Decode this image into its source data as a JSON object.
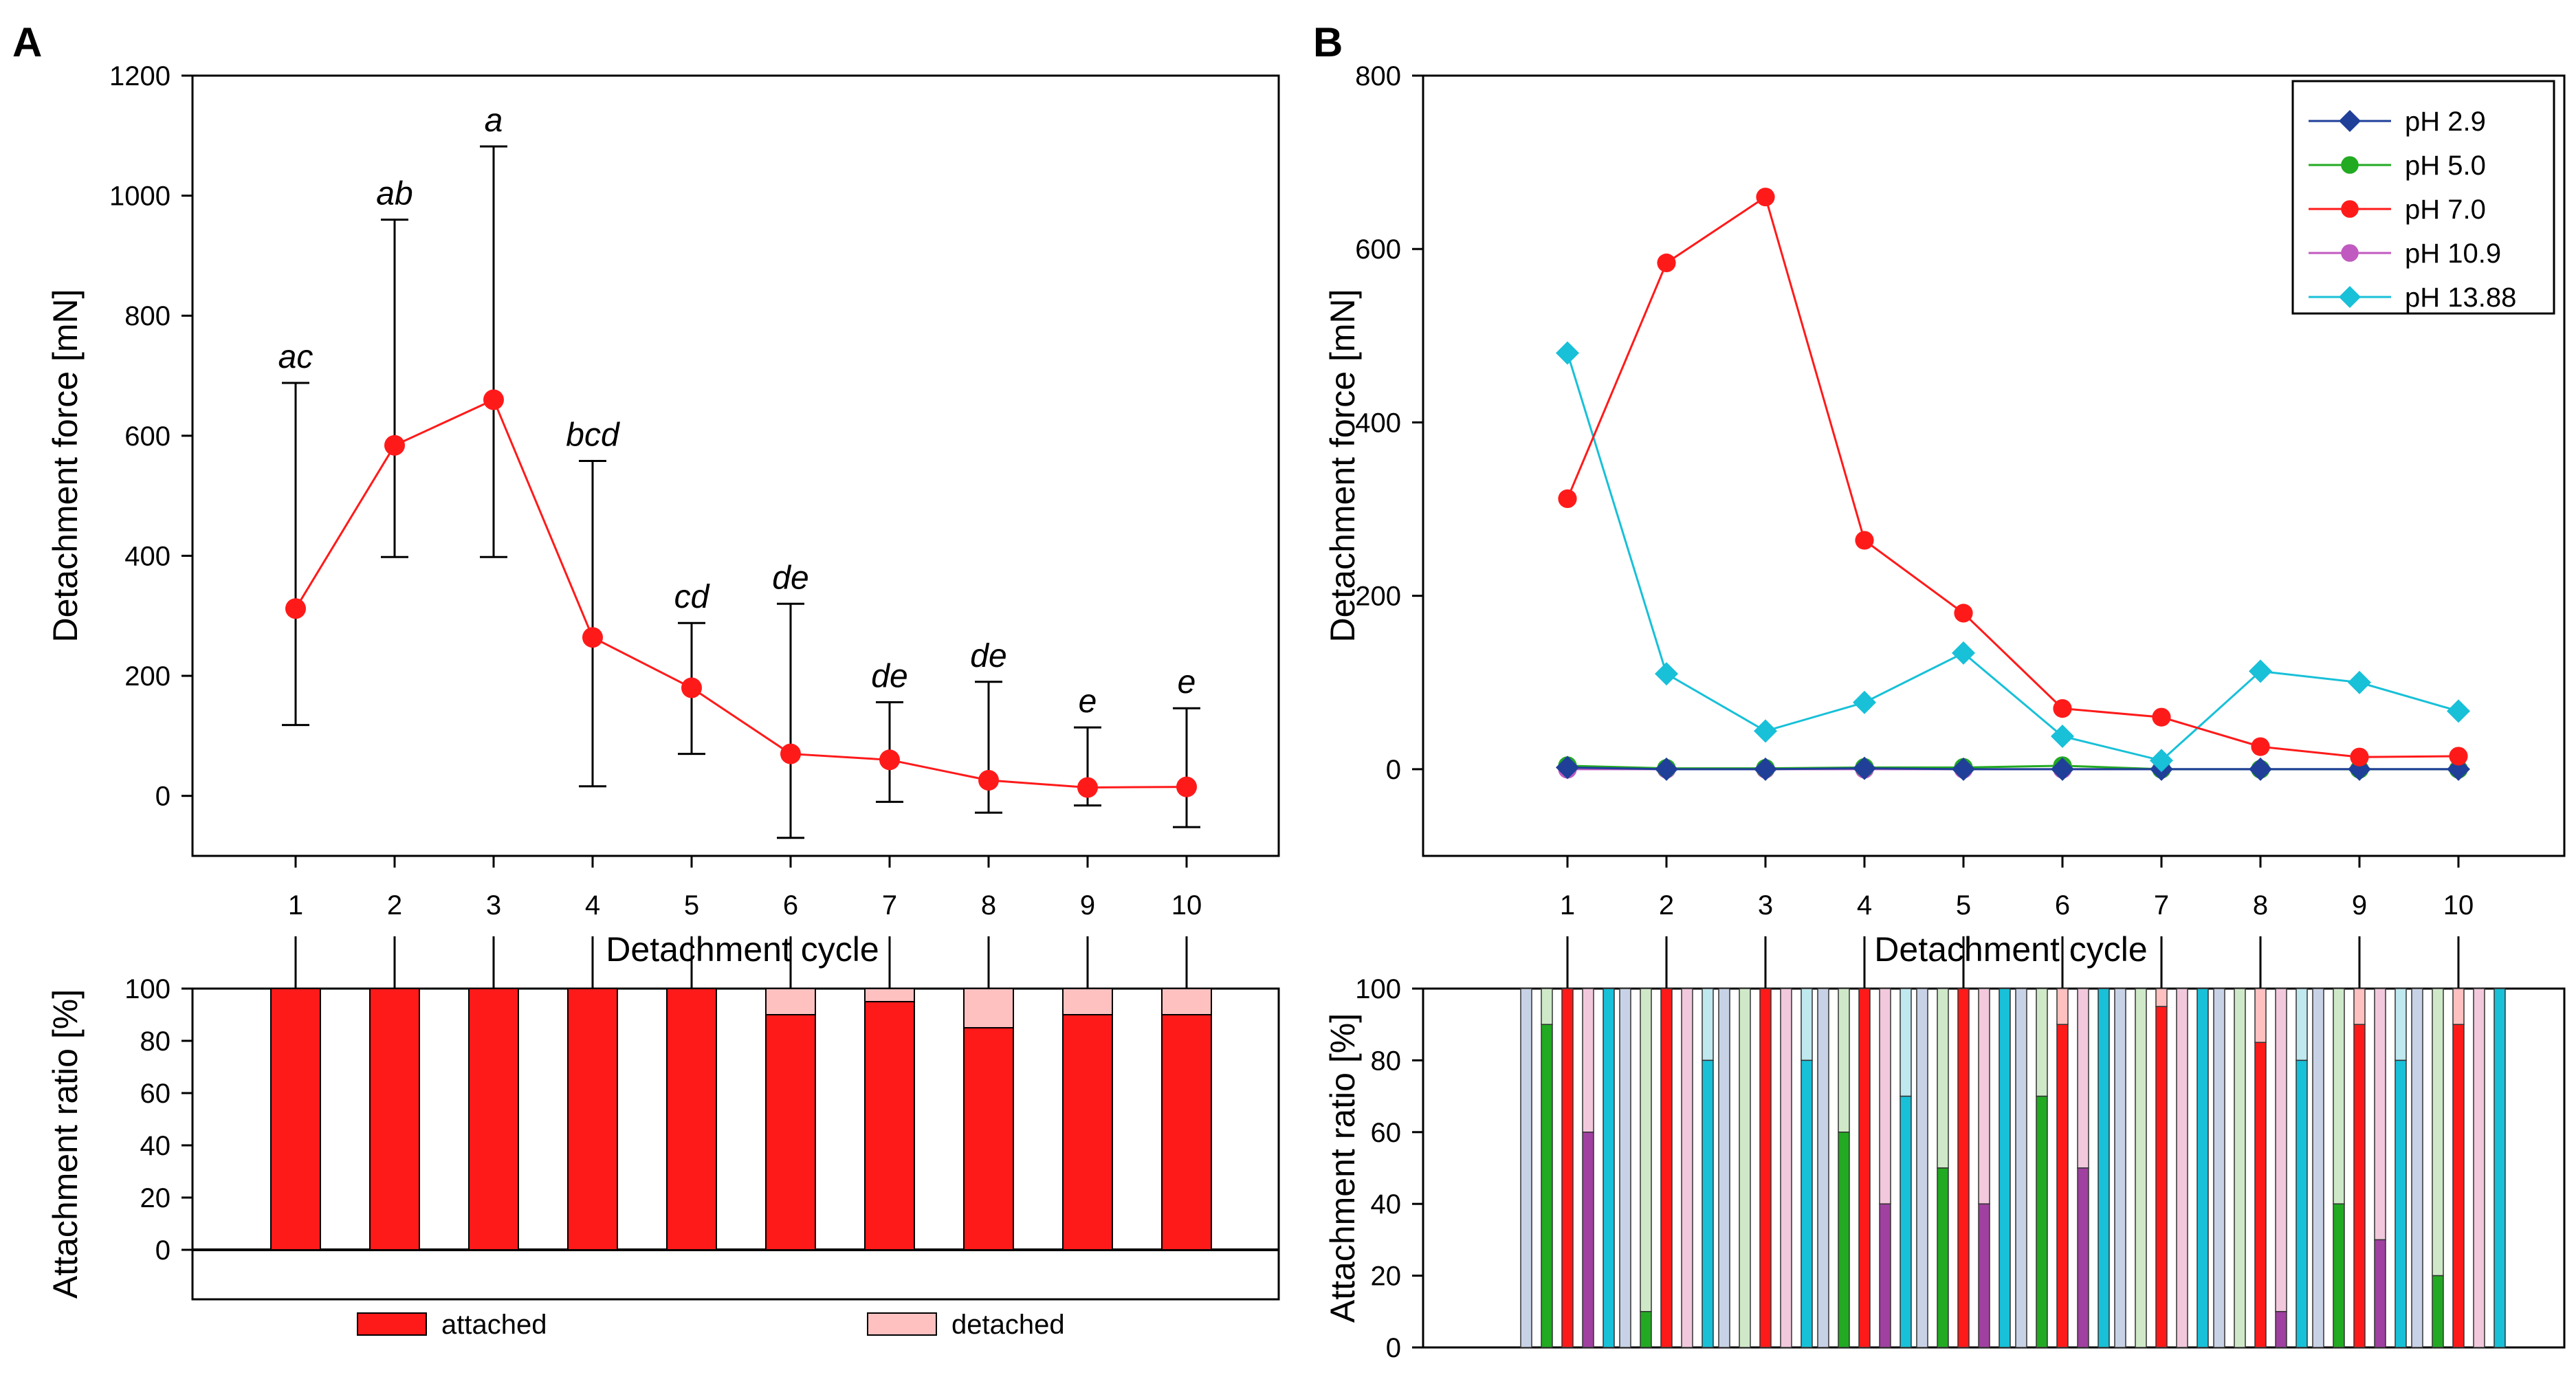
{
  "chart_data": [
    {
      "panel": "A",
      "type": "line",
      "xlabel": "Detachment cycle",
      "ylabel": "Detachment force [mN]",
      "ylim": [
        -100,
        1200
      ],
      "yticks": [
        0,
        200,
        400,
        600,
        800,
        1000,
        1200
      ],
      "x": [
        1,
        2,
        3,
        4,
        5,
        6,
        7,
        8,
        9,
        10
      ],
      "series": [
        {
          "name": "Detachment force",
          "color": "#ff1a1a",
          "values": [
            312,
            584,
            660,
            264,
            180,
            70,
            60,
            26,
            14,
            15
          ],
          "err_upper": [
            688,
            960,
            1082,
            558,
            288,
            320,
            156,
            190,
            114,
            146
          ],
          "err_lower": [
            118,
            398,
            398,
            16,
            70,
            -70,
            -10,
            -28,
            -16,
            -52
          ]
        }
      ],
      "annotations": [
        "ac",
        "ab",
        "a",
        "bcd",
        "cd",
        "de",
        "de",
        "de",
        "e",
        "e"
      ]
    },
    {
      "panel": "A-bottom",
      "type": "bar",
      "stacked": true,
      "ylabel": "Attachment ratio [%]",
      "ylim": [
        0,
        100
      ],
      "yticks": [
        0,
        20,
        40,
        60,
        80,
        100
      ],
      "categories": [
        1,
        2,
        3,
        4,
        5,
        6,
        7,
        8,
        9,
        10
      ],
      "series": [
        {
          "name": "attached",
          "color": "#ff1a1a",
          "values": [
            100,
            100,
            100,
            100,
            100,
            90,
            95,
            85,
            90,
            90
          ]
        },
        {
          "name": "detached",
          "color": "#ffc0c0",
          "values": [
            0,
            0,
            0,
            0,
            0,
            10,
            5,
            15,
            10,
            10
          ]
        }
      ],
      "legend": [
        "attached",
        "detached"
      ]
    },
    {
      "panel": "B",
      "type": "line",
      "xlabel": "Detachment cycle",
      "ylabel": "Detachment force [mN]",
      "ylim": [
        -100,
        800
      ],
      "yticks": [
        0,
        200,
        400,
        600,
        800
      ],
      "x": [
        1,
        2,
        3,
        4,
        5,
        6,
        7,
        8,
        9,
        10
      ],
      "series": [
        {
          "name": "pH 2.9",
          "color": "#1f3f99",
          "marker": "diamond",
          "values": [
            2,
            0,
            0,
            1,
            0,
            0,
            0,
            0,
            0,
            0
          ]
        },
        {
          "name": "pH 5.0",
          "color": "#22aa22",
          "marker": "circle",
          "values": [
            4,
            1,
            1,
            2,
            2,
            4,
            0,
            0,
            0,
            0
          ]
        },
        {
          "name": "pH 7.0",
          "color": "#ff1a1a",
          "marker": "circle",
          "values": [
            312,
            584,
            660,
            264,
            180,
            70,
            60,
            26,
            14,
            15
          ]
        },
        {
          "name": "pH 10.9",
          "color": "#c05ac0",
          "marker": "circle",
          "values": [
            0,
            0,
            0,
            0,
            0,
            0,
            0,
            0,
            0,
            0
          ]
        },
        {
          "name": "pH 13.88",
          "color": "#18c0d8",
          "marker": "diamond",
          "values": [
            480,
            110,
            44,
            77,
            134,
            38,
            10,
            113,
            100,
            67
          ]
        }
      ],
      "legend_position": "top-right"
    },
    {
      "panel": "B-bottom",
      "type": "bar",
      "stacked": true,
      "ylabel": "Attachment ratio [%]",
      "ylim": [
        0,
        100
      ],
      "yticks": [
        0,
        20,
        40,
        60,
        80,
        100
      ],
      "categories": [
        1,
        2,
        3,
        4,
        5,
        6,
        7,
        8,
        9,
        10
      ],
      "group_order": [
        "pH 2.9",
        "pH 5.0",
        "pH 7.0",
        "pH 10.9",
        "pH 13.88"
      ],
      "attached_colors": [
        "#9aaed0",
        "#22aa22",
        "#ff1a1a",
        "#a040a0",
        "#18c0d8"
      ],
      "detached_colors": [
        "#c8d2e6",
        "#cfe9c8",
        "#ffc0c0",
        "#f2c8dc",
        "#bfe8ef"
      ],
      "attached": [
        [
          0,
          90,
          100,
          60,
          100
        ],
        [
          0,
          10,
          100,
          0,
          80
        ],
        [
          0,
          0,
          100,
          0,
          80
        ],
        [
          0,
          60,
          100,
          40,
          70
        ],
        [
          0,
          50,
          100,
          40,
          100
        ],
        [
          0,
          70,
          90,
          50,
          100
        ],
        [
          0,
          0,
          95,
          0,
          100
        ],
        [
          0,
          0,
          85,
          10,
          80
        ],
        [
          0,
          40,
          90,
          30,
          80
        ],
        [
          0,
          20,
          90,
          0,
          100
        ]
      ]
    }
  ],
  "panels": {
    "a_letter": "A",
    "b_letter": "B"
  },
  "legend_bottom": {
    "attached": "attached",
    "detached": "detached"
  }
}
